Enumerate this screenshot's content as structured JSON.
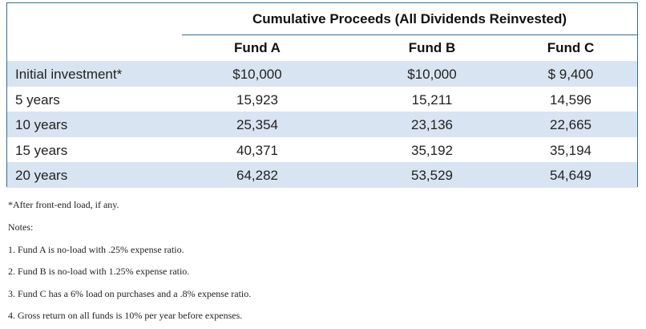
{
  "table": {
    "title": "Cumulative Proceeds (All Dividends Reinvested)",
    "columns": [
      "Fund A",
      "Fund B",
      "Fund C"
    ],
    "rows": [
      {
        "label": "Initial investment*",
        "values": [
          "$10,000",
          "$10,000",
          "$ 9,400"
        ]
      },
      {
        "label": "5 years",
        "values": [
          "15,923",
          "15,211",
          "14,596"
        ]
      },
      {
        "label": "10 years",
        "values": [
          "25,354",
          "23,136",
          "22,665"
        ]
      },
      {
        "label": "15 years",
        "values": [
          "40,371",
          "35,192",
          "35,194"
        ]
      },
      {
        "label": "20 years",
        "values": [
          "64,282",
          "53,529",
          "54,649"
        ]
      }
    ]
  },
  "footnote": "*After front-end load, if any.",
  "notes": {
    "heading": "Notes:",
    "items": [
      "1. Fund A is no-load with .25% expense ratio.",
      "2. Fund B is no-load with 1.25% expense ratio.",
      "3. Fund C has a 6% load on purchases and a .8% expense ratio.",
      "4. Gross return on all funds is 10% per year before expenses."
    ]
  },
  "colors": {
    "border": "#2f6e9e",
    "row_shade": "#d8e4f1"
  }
}
